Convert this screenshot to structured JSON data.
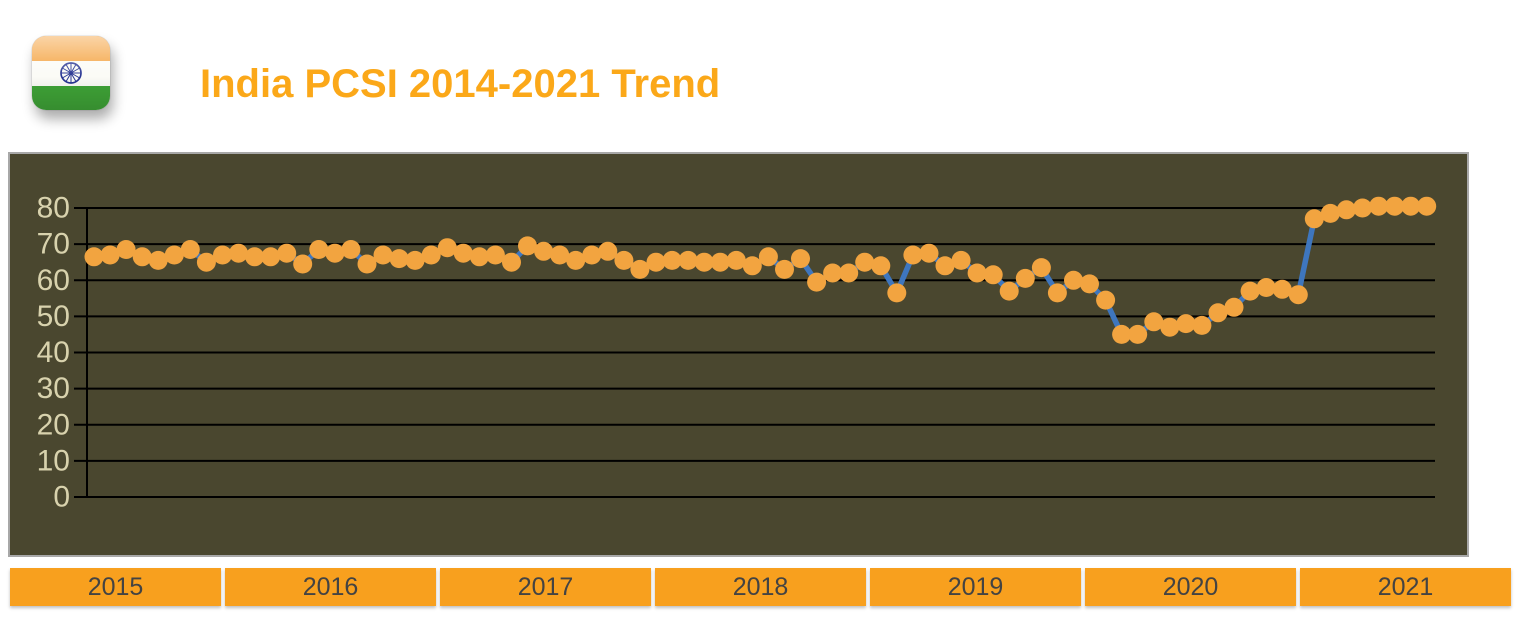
{
  "header": {
    "title": "India PCSI 2014-2021 Trend",
    "flag_icon": "india-flag-icon"
  },
  "chart_data": {
    "type": "line",
    "title": "India PCSI 2014-2021 Trend",
    "xlabel": "",
    "ylabel": "",
    "x_axis": {
      "year_labels": [
        "2015",
        "2016",
        "2017",
        "2018",
        "2019",
        "2020",
        "2021"
      ],
      "granularity": "monthly"
    },
    "y_axis": {
      "ticks": [
        80,
        70,
        60,
        50,
        40,
        30,
        20,
        10,
        0
      ],
      "range": [
        0,
        85
      ]
    },
    "grid": "horizontal-on",
    "legend": "none",
    "series": [
      {
        "name": "India PCSI",
        "values": [
          66.5,
          67,
          68.5,
          66.5,
          65.5,
          67,
          68.5,
          65,
          67,
          67.5,
          66.5,
          66.5,
          67.5,
          64.5,
          68.5,
          67.5,
          68.5,
          64.5,
          67,
          66,
          65.5,
          67,
          69,
          67.5,
          66.5,
          67,
          65,
          69.5,
          68,
          67,
          65.5,
          67,
          68,
          65.5,
          63,
          65,
          65.5,
          65.5,
          65,
          65,
          65.5,
          64,
          66.5,
          63,
          66,
          59.5,
          62,
          62,
          65,
          64,
          56.5,
          67,
          67.5,
          64,
          65.5,
          62,
          61.5,
          57,
          60.5,
          63.5,
          56.5,
          60,
          59,
          54.5,
          45,
          45,
          48.5,
          47,
          48,
          47.5,
          51,
          52.5,
          57,
          58,
          57.5,
          56,
          77,
          78.5,
          79.5,
          80,
          80.5,
          80.5,
          80.5,
          80.5
        ]
      }
    ],
    "colors": {
      "marker": "#F2A440",
      "line": "#3E76BE",
      "plot_background": "#4A472F",
      "gridline": "#000000",
      "tick_label": "#D8D2AD",
      "year_band": "#F8A01E",
      "year_band_text": "#434343",
      "title": "#FBA819"
    }
  }
}
